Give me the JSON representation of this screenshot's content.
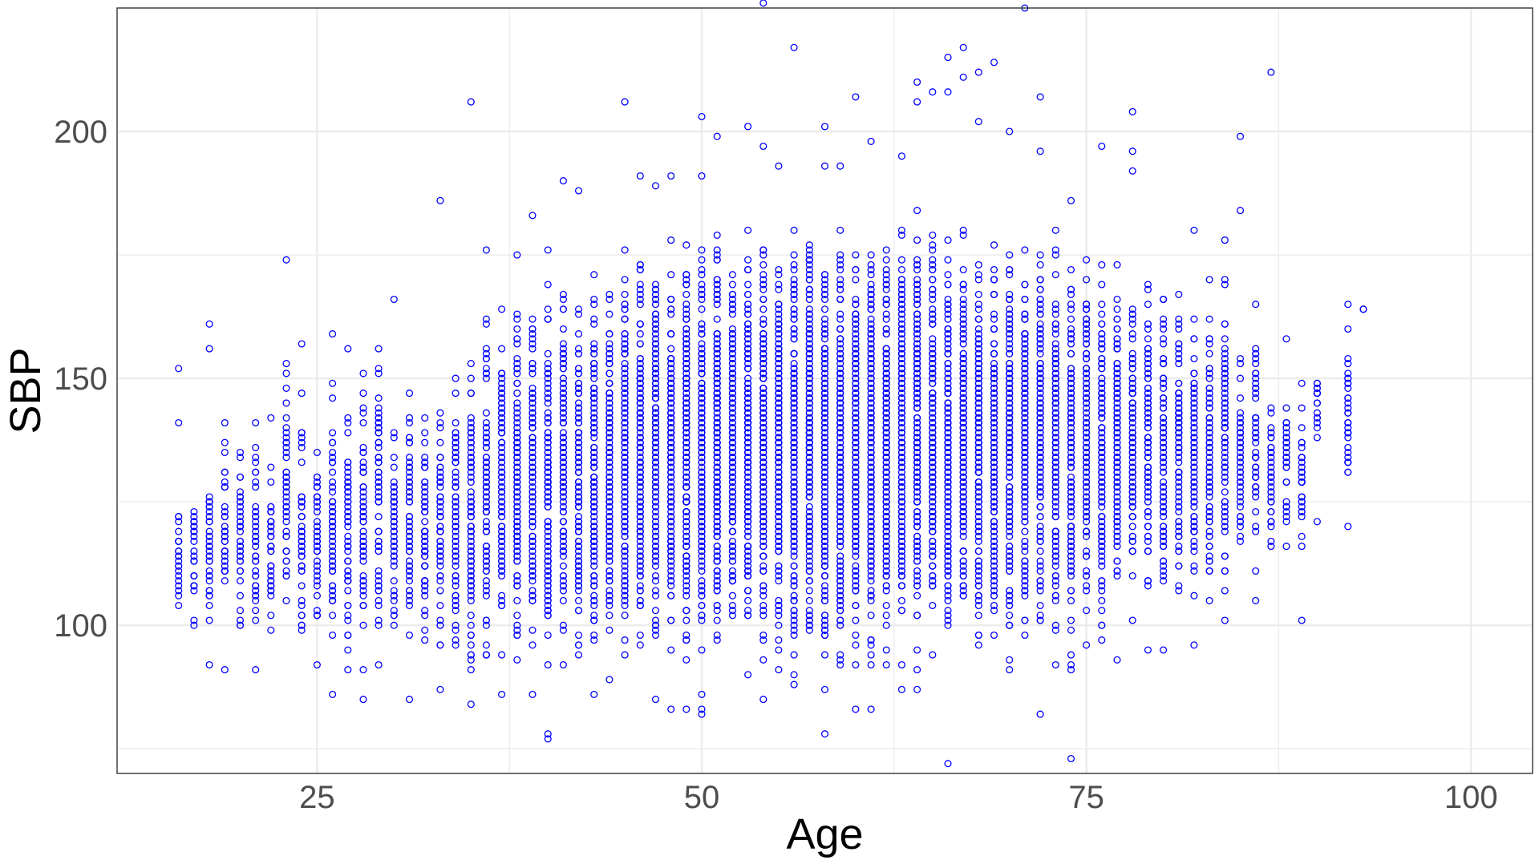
{
  "chart_data": {
    "type": "scatter",
    "title": "",
    "xlabel": "Age",
    "ylabel": "SBP",
    "xlim": [
      12,
      104
    ],
    "ylim": [
      70,
      225
    ],
    "x_ticks": [
      25,
      50,
      75,
      100
    ],
    "y_ticks": [
      100,
      150,
      200
    ],
    "x_minor_ticks": [
      37.5,
      62.5,
      87.5
    ],
    "y_minor_ticks": [
      75,
      125,
      175
    ],
    "grid": true,
    "legend": "none",
    "marker": "open-circle",
    "colors": {
      "points": "#0000ff",
      "grid": "#ebebeb",
      "panel_border": "#333333",
      "tick_text": "#4d4d4d",
      "axis_title": "#000000"
    },
    "ages": [
      16,
      17,
      18,
      19,
      20,
      21,
      22,
      23,
      24,
      25,
      26,
      27,
      28,
      29,
      30,
      31,
      32,
      33,
      34,
      35,
      36,
      37,
      38,
      39,
      40,
      41,
      42,
      43,
      44,
      45,
      46,
      47,
      48,
      49,
      50,
      51,
      52,
      53,
      54,
      55,
      56,
      57,
      58,
      59,
      60,
      61,
      62,
      63,
      64,
      65,
      66,
      67,
      68,
      69,
      70,
      71,
      72,
      73,
      74,
      75,
      76,
      77,
      78,
      79,
      80,
      81,
      82,
      83,
      84,
      85,
      86,
      87,
      88,
      89,
      90,
      92,
      93
    ],
    "bulk_ranges": [
      [
        95,
        130
      ],
      [
        95,
        135
      ],
      [
        90,
        141
      ],
      [
        95,
        146
      ],
      [
        90,
        146
      ],
      [
        90,
        146
      ],
      [
        90,
        146
      ],
      [
        93,
        160
      ],
      [
        89,
        156
      ],
      [
        92,
        148
      ],
      [
        86,
        159
      ],
      [
        86,
        155
      ],
      [
        85,
        157
      ],
      [
        87,
        164
      ],
      [
        90,
        148
      ],
      [
        88,
        151
      ],
      [
        87,
        155
      ],
      [
        88,
        155
      ],
      [
        85,
        158
      ],
      [
        83,
        162
      ],
      [
        86,
        168
      ],
      [
        86,
        173
      ],
      [
        87,
        173
      ],
      [
        85,
        175
      ],
      [
        80,
        176
      ],
      [
        86,
        176
      ],
      [
        85,
        176
      ],
      [
        85,
        178
      ],
      [
        85,
        180
      ],
      [
        86,
        182
      ],
      [
        86,
        185
      ],
      [
        88,
        186
      ],
      [
        88,
        186
      ],
      [
        83,
        188
      ],
      [
        83,
        188
      ],
      [
        83,
        188
      ],
      [
        84,
        187
      ],
      [
        84,
        187
      ],
      [
        85,
        187
      ],
      [
        85,
        188
      ],
      [
        85,
        188
      ],
      [
        85,
        188
      ],
      [
        82,
        187
      ],
      [
        84,
        187
      ],
      [
        84,
        187
      ],
      [
        85,
        190
      ],
      [
        86,
        190
      ],
      [
        86,
        190
      ],
      [
        88,
        190
      ],
      [
        88,
        188
      ],
      [
        88,
        186
      ],
      [
        88,
        186
      ],
      [
        88,
        186
      ],
      [
        88,
        186
      ],
      [
        88,
        186
      ],
      [
        90,
        186
      ],
      [
        88,
        186
      ],
      [
        87,
        186
      ],
      [
        87,
        185
      ],
      [
        91,
        184
      ],
      [
        91,
        184
      ],
      [
        94,
        183
      ],
      [
        95,
        182
      ],
      [
        95,
        180
      ],
      [
        96,
        178
      ],
      [
        98,
        178
      ],
      [
        98,
        172
      ],
      [
        98,
        173
      ],
      [
        101,
        178
      ],
      [
        105,
        165
      ],
      [
        105,
        165
      ],
      [
        110,
        153
      ],
      [
        112,
        153
      ],
      [
        112,
        149
      ],
      [
        136,
        154
      ],
      [
        120,
        165
      ],
      [
        164,
        164
      ]
    ],
    "outliers": [
      [
        16,
        152
      ],
      [
        16,
        141
      ],
      [
        18,
        161
      ],
      [
        18,
        156
      ],
      [
        23,
        174
      ],
      [
        24,
        157
      ],
      [
        26,
        159
      ],
      [
        27,
        156
      ],
      [
        30,
        166
      ],
      [
        33,
        186
      ],
      [
        35,
        206
      ],
      [
        36,
        176
      ],
      [
        38,
        175
      ],
      [
        39,
        183
      ],
      [
        40,
        176
      ],
      [
        41,
        190
      ],
      [
        42,
        188
      ],
      [
        45,
        206
      ],
      [
        46,
        191
      ],
      [
        47,
        189
      ],
      [
        48,
        191
      ],
      [
        50,
        203
      ],
      [
        50,
        191
      ],
      [
        51,
        199
      ],
      [
        53,
        201
      ],
      [
        54,
        226
      ],
      [
        54,
        197
      ],
      [
        55,
        193
      ],
      [
        56,
        217
      ],
      [
        58,
        201
      ],
      [
        58,
        193
      ],
      [
        59,
        193
      ],
      [
        60,
        207
      ],
      [
        61,
        198
      ],
      [
        63,
        195
      ],
      [
        64,
        210
      ],
      [
        64,
        206
      ],
      [
        65,
        208
      ],
      [
        66,
        215
      ],
      [
        66,
        208
      ],
      [
        67,
        217
      ],
      [
        67,
        211
      ],
      [
        68,
        212
      ],
      [
        68,
        202
      ],
      [
        69,
        214
      ],
      [
        70,
        200
      ],
      [
        71,
        225
      ],
      [
        72,
        207
      ],
      [
        72,
        196
      ],
      [
        74,
        186
      ],
      [
        76,
        197
      ],
      [
        78,
        204
      ],
      [
        78,
        196
      ],
      [
        78,
        192
      ],
      [
        82,
        180
      ],
      [
        84,
        178
      ],
      [
        85,
        199
      ],
      [
        85,
        184
      ],
      [
        86,
        165
      ],
      [
        87,
        212
      ],
      [
        88,
        158
      ],
      [
        89,
        149
      ],
      [
        90,
        141
      ],
      [
        90,
        138
      ],
      [
        92,
        165
      ],
      [
        54,
        85
      ],
      [
        56,
        88
      ],
      [
        58,
        78
      ],
      [
        58,
        87
      ],
      [
        60,
        83
      ],
      [
        61,
        83
      ],
      [
        63,
        87
      ],
      [
        64,
        91
      ],
      [
        64,
        87
      ],
      [
        66,
        72
      ],
      [
        70,
        91
      ],
      [
        70,
        93
      ],
      [
        72,
        82
      ],
      [
        74,
        73
      ],
      [
        74,
        91
      ],
      [
        75,
        96
      ],
      [
        77,
        93
      ],
      [
        79,
        95
      ],
      [
        80,
        95
      ],
      [
        82,
        96
      ],
      [
        84,
        101
      ],
      [
        86,
        105
      ],
      [
        87,
        121
      ],
      [
        89,
        116
      ],
      [
        89,
        101
      ],
      [
        92,
        120
      ],
      [
        90,
        121
      ],
      [
        88,
        124
      ],
      [
        19,
        91
      ],
      [
        21,
        91
      ],
      [
        25,
        92
      ],
      [
        26,
        86
      ],
      [
        28,
        85
      ],
      [
        31,
        85
      ],
      [
        33,
        87
      ],
      [
        35,
        84
      ],
      [
        37,
        86
      ],
      [
        39,
        86
      ],
      [
        40,
        78
      ],
      [
        40,
        77
      ],
      [
        43,
        86
      ],
      [
        44,
        89
      ],
      [
        47,
        85
      ],
      [
        48,
        83
      ],
      [
        49,
        83
      ],
      [
        50,
        83
      ],
      [
        50,
        82
      ]
    ]
  }
}
